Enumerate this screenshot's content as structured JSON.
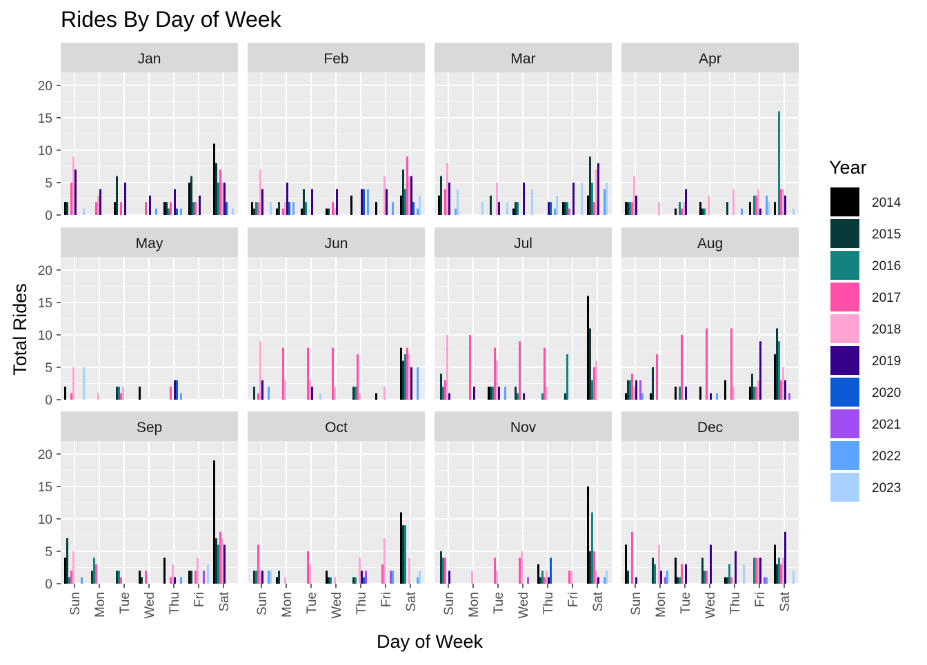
{
  "chart_data": {
    "type": "bar",
    "title": "Rides By Day of Week",
    "xlabel": "Day of Week",
    "ylabel": "Total Rides",
    "ylim": [
      0,
      22
    ],
    "yticks": [
      0,
      5,
      10,
      15,
      20
    ],
    "categories": [
      "Sun",
      "Mon",
      "Tue",
      "Wed",
      "Thu",
      "Fri",
      "Sat"
    ],
    "legend": {
      "title": "Year",
      "position": "right",
      "entries": [
        {
          "label": "2014",
          "color": "#000000"
        },
        {
          "label": "2015",
          "color": "#073b3a"
        },
        {
          "label": "2016",
          "color": "#138280"
        },
        {
          "label": "2017",
          "color": "#ff4fa8"
        },
        {
          "label": "2018",
          "color": "#ffa3d3"
        },
        {
          "label": "2019",
          "color": "#36008a"
        },
        {
          "label": "2020",
          "color": "#0b5ad6"
        },
        {
          "label": "2021",
          "color": "#a24cf3"
        },
        {
          "label": "2022",
          "color": "#5ba4ff"
        },
        {
          "label": "2023",
          "color": "#a8d1ff"
        }
      ]
    },
    "panels": [
      {
        "month": "Jan",
        "values": [
          [
            2,
            2,
            0,
            5,
            9,
            7,
            0,
            0,
            0,
            1
          ],
          [
            0,
            0,
            0,
            2,
            3,
            4,
            0,
            0,
            0,
            0
          ],
          [
            2,
            6,
            0,
            2,
            0,
            5,
            0,
            0,
            0,
            0
          ],
          [
            0,
            0,
            0,
            2,
            0,
            3,
            0,
            0,
            1,
            0
          ],
          [
            2,
            2,
            1,
            2,
            0,
            4,
            1,
            0,
            1,
            0
          ],
          [
            5,
            6,
            2,
            2,
            0,
            3,
            0,
            0,
            0,
            0
          ],
          [
            11,
            8,
            5,
            7,
            5,
            5,
            2,
            0,
            0,
            1
          ]
        ]
      },
      {
        "month": "Feb",
        "values": [
          [
            2,
            1,
            2,
            2,
            7,
            4,
            0,
            0,
            0,
            2
          ],
          [
            1,
            2,
            0,
            1,
            2,
            5,
            2,
            0,
            2,
            0
          ],
          [
            1,
            4,
            2,
            0,
            0,
            4,
            0,
            0,
            0,
            0
          ],
          [
            1,
            1,
            0,
            2,
            1,
            4,
            0,
            0,
            0,
            0
          ],
          [
            3,
            0,
            0,
            0,
            0,
            4,
            4,
            0,
            4,
            0
          ],
          [
            2,
            0,
            0,
            0,
            6,
            4,
            0,
            0,
            2,
            0
          ],
          [
            3,
            7,
            4,
            9,
            6,
            6,
            2,
            0,
            1,
            3
          ]
        ]
      },
      {
        "month": "Mar",
        "values": [
          [
            3,
            6,
            0,
            4,
            8,
            5,
            0,
            0,
            1,
            4
          ],
          [
            0,
            0,
            0,
            0,
            0,
            0,
            0,
            0,
            0,
            2
          ],
          [
            0,
            3,
            0,
            0,
            5,
            2,
            0,
            0,
            0,
            2
          ],
          [
            1,
            2,
            2,
            0,
            0,
            5,
            0,
            0,
            0,
            4
          ],
          [
            0,
            0,
            0,
            0,
            0,
            2,
            2,
            0,
            1,
            3
          ],
          [
            2,
            2,
            2,
            1,
            0,
            5,
            0,
            0,
            0,
            5
          ],
          [
            3,
            9,
            5,
            2,
            7,
            8,
            0,
            0,
            4,
            5
          ]
        ]
      },
      {
        "month": "Apr",
        "values": [
          [
            2,
            2,
            2,
            2,
            6,
            3,
            0,
            0,
            0,
            0
          ],
          [
            0,
            0,
            0,
            0,
            2,
            0,
            0,
            0,
            0,
            0
          ],
          [
            1,
            0,
            2,
            1,
            2,
            4,
            0,
            0,
            0,
            0
          ],
          [
            2,
            1,
            1,
            0,
            3,
            0,
            0,
            0,
            0,
            0
          ],
          [
            0,
            2,
            0,
            0,
            4,
            0,
            0,
            0,
            1,
            0
          ],
          [
            2,
            0,
            3,
            3,
            4,
            1,
            0,
            0,
            3,
            2
          ],
          [
            2,
            0,
            16,
            4,
            4,
            3,
            0,
            0,
            0,
            1
          ]
        ]
      },
      {
        "month": "May",
        "values": [
          [
            2,
            0,
            0,
            1,
            5,
            0,
            0,
            0,
            0,
            5
          ],
          [
            0,
            0,
            0,
            0,
            1,
            0,
            0,
            0,
            0,
            0
          ],
          [
            0,
            2,
            2,
            1,
            2,
            0,
            0,
            0,
            0,
            0
          ],
          [
            2,
            0,
            0,
            0,
            0,
            0,
            0,
            0,
            0,
            0
          ],
          [
            0,
            0,
            0,
            2,
            0,
            3,
            3,
            0,
            1,
            0
          ],
          [
            0,
            0,
            0,
            0,
            0,
            0,
            0,
            0,
            0,
            0
          ],
          [
            0,
            0,
            0,
            0,
            0,
            0,
            0,
            0,
            0,
            0
          ]
        ]
      },
      {
        "month": "Jun",
        "values": [
          [
            0,
            2,
            0,
            1,
            9,
            3,
            0,
            0,
            2,
            0
          ],
          [
            0,
            0,
            0,
            8,
            3,
            0,
            0,
            0,
            0,
            0
          ],
          [
            0,
            0,
            0,
            8,
            3,
            2,
            0,
            0,
            0,
            1
          ],
          [
            0,
            0,
            0,
            8,
            2,
            0,
            0,
            0,
            0,
            0
          ],
          [
            0,
            2,
            2,
            7,
            1,
            0,
            0,
            0,
            0,
            0
          ],
          [
            1,
            0,
            0,
            0,
            2,
            0,
            0,
            0,
            0,
            0
          ],
          [
            8,
            6,
            7,
            8,
            7,
            5,
            0,
            0,
            5,
            0
          ]
        ]
      },
      {
        "month": "Jul",
        "values": [
          [
            0,
            4,
            2,
            3,
            10,
            1,
            0,
            0,
            0,
            0
          ],
          [
            0,
            0,
            0,
            10,
            0,
            2,
            0,
            0,
            0,
            0
          ],
          [
            2,
            2,
            2,
            8,
            6,
            2,
            0,
            0,
            2,
            0
          ],
          [
            0,
            2,
            1,
            9,
            0,
            1,
            0,
            0,
            0,
            0
          ],
          [
            0,
            0,
            1,
            8,
            2,
            0,
            0,
            0,
            0,
            0
          ],
          [
            0,
            1,
            7,
            0,
            0,
            0,
            0,
            0,
            0,
            0
          ],
          [
            16,
            11,
            3,
            5,
            6,
            0,
            0,
            0,
            0,
            0
          ]
        ]
      },
      {
        "month": "Aug",
        "values": [
          [
            1,
            3,
            3,
            4,
            2,
            3,
            0,
            3,
            1,
            0
          ],
          [
            1,
            5,
            0,
            7,
            0,
            0,
            0,
            0,
            0,
            0
          ],
          [
            2,
            0,
            2,
            10,
            0,
            2,
            0,
            0,
            0,
            0
          ],
          [
            2,
            0,
            0,
            11,
            0,
            1,
            0,
            0,
            1,
            0
          ],
          [
            3,
            0,
            0,
            11,
            2,
            0,
            0,
            0,
            0,
            0
          ],
          [
            2,
            4,
            2,
            2,
            3,
            9,
            0,
            0,
            0,
            0
          ],
          [
            7,
            11,
            9,
            3,
            5,
            3,
            0,
            1,
            0,
            0
          ]
        ]
      },
      {
        "month": "Sep",
        "values": [
          [
            4,
            7,
            1,
            2,
            5,
            0,
            0,
            0,
            1,
            0
          ],
          [
            0,
            2,
            4,
            3,
            0,
            0,
            0,
            0,
            0,
            0
          ],
          [
            0,
            2,
            2,
            1,
            0,
            0,
            0,
            0,
            0,
            0
          ],
          [
            2,
            1,
            0,
            2,
            0,
            0,
            0,
            0,
            0,
            0
          ],
          [
            4,
            0,
            0,
            1,
            3,
            1,
            0,
            0,
            1,
            0
          ],
          [
            2,
            2,
            0,
            2,
            4,
            0,
            0,
            2,
            0,
            3
          ],
          [
            19,
            7,
            6,
            8,
            7,
            6,
            0,
            0,
            0,
            0
          ]
        ]
      },
      {
        "month": "Oct",
        "values": [
          [
            0,
            2,
            2,
            6,
            2,
            2,
            0,
            0,
            2,
            2
          ],
          [
            1,
            2,
            0,
            0,
            1,
            0,
            0,
            0,
            0,
            0
          ],
          [
            0,
            0,
            0,
            5,
            3,
            0,
            0,
            0,
            0,
            0
          ],
          [
            2,
            1,
            1,
            0,
            1,
            0,
            0,
            0,
            0,
            0
          ],
          [
            0,
            1,
            1,
            0,
            4,
            2,
            1,
            2,
            0,
            0
          ],
          [
            0,
            0,
            0,
            3,
            7,
            0,
            0,
            2,
            2,
            0
          ],
          [
            11,
            9,
            9,
            0,
            4,
            0,
            0,
            0,
            1,
            2
          ]
        ]
      },
      {
        "month": "Nov",
        "values": [
          [
            0,
            5,
            4,
            4,
            0,
            2,
            0,
            0,
            0,
            0
          ],
          [
            0,
            0,
            0,
            0,
            2,
            0,
            0,
            0,
            0,
            0
          ],
          [
            0,
            0,
            0,
            4,
            2,
            0,
            0,
            0,
            0,
            0
          ],
          [
            0,
            0,
            0,
            4,
            5,
            0,
            0,
            1,
            0,
            0
          ],
          [
            3,
            1,
            2,
            1,
            2,
            1,
            4,
            0,
            0,
            0
          ],
          [
            0,
            0,
            0,
            2,
            2,
            0,
            0,
            0,
            0,
            0
          ],
          [
            15,
            5,
            11,
            5,
            2,
            1,
            0,
            0,
            1,
            2
          ]
        ]
      },
      {
        "month": "Dec",
        "values": [
          [
            6,
            2,
            0,
            8,
            0,
            1,
            0,
            0,
            0,
            0
          ],
          [
            0,
            4,
            3,
            0,
            6,
            2,
            0,
            1,
            2,
            0
          ],
          [
            4,
            1,
            1,
            3,
            0,
            3,
            0,
            0,
            0,
            0
          ],
          [
            0,
            4,
            2,
            2,
            0,
            6,
            0,
            0,
            0,
            0
          ],
          [
            1,
            1,
            3,
            1,
            0,
            5,
            0,
            0,
            0,
            3
          ],
          [
            0,
            0,
            4,
            4,
            4,
            4,
            0,
            1,
            1,
            0
          ],
          [
            6,
            3,
            4,
            3,
            4,
            8,
            0,
            0,
            0,
            2
          ]
        ]
      }
    ]
  }
}
